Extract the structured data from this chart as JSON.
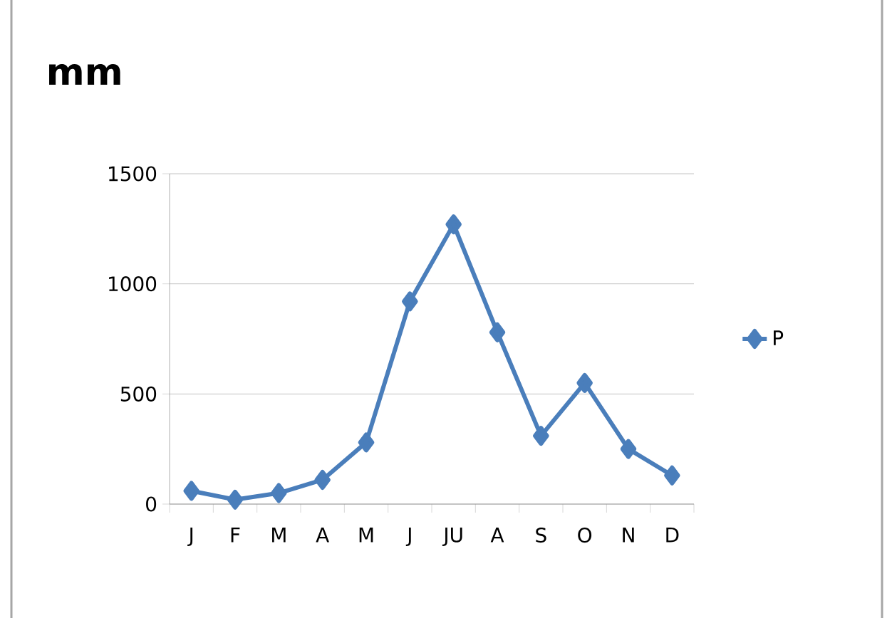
{
  "chart_data": {
    "type": "line",
    "title": "mm",
    "categories": [
      "J",
      "F",
      "M",
      "A",
      "M",
      "J",
      "JU",
      "A",
      "S",
      "O",
      "N",
      "D"
    ],
    "series": [
      {
        "name": "P",
        "color": "#4a7ebb",
        "values": [
          60,
          20,
          50,
          110,
          280,
          920,
          1270,
          780,
          310,
          550,
          250,
          130
        ]
      }
    ],
    "ylim": [
      0,
      1500
    ],
    "yticks": [
      0,
      500,
      1000,
      1500
    ],
    "grid": "y",
    "legend": "right",
    "marker": "diamond",
    "line_style": "solid"
  }
}
